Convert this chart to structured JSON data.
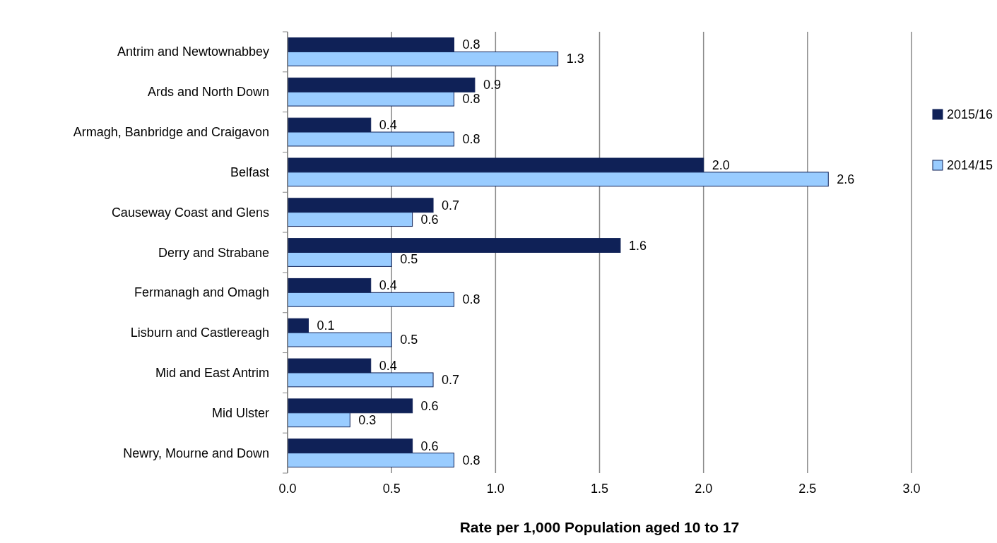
{
  "chart_data": {
    "type": "bar",
    "orientation": "horizontal",
    "xlabel": "Rate per 1,000 Population aged 10 to 17",
    "categories": [
      "Antrim and Newtownabbey",
      "Ards and North Down",
      "Armagh, Banbridge and Craigavon",
      "Belfast",
      "Causeway Coast and Glens",
      "Derry and Strabane",
      "Fermanagh and Omagh",
      "Lisburn and Castlereagh",
      "Mid and East Antrim",
      "Mid Ulster",
      "Newry, Mourne and Down"
    ],
    "series": [
      {
        "name": "2015/16",
        "color": "#0f2157",
        "values": [
          0.8,
          0.9,
          0.4,
          2.0,
          0.7,
          1.6,
          0.4,
          0.1,
          0.4,
          0.6,
          0.6
        ],
        "value_labels": [
          "0.8",
          "0.9",
          "0.4",
          "2.0",
          "0.7",
          "1.6",
          "0.4",
          "0.1",
          "0.4",
          "0.6",
          "0.6"
        ]
      },
      {
        "name": "2014/15",
        "color": "#99ccff",
        "values": [
          1.3,
          0.8,
          0.8,
          2.6,
          0.6,
          0.5,
          0.8,
          0.5,
          0.7,
          0.3,
          0.8
        ],
        "value_labels": [
          "1.3",
          "0.8",
          "0.8",
          "2.6",
          "0.6",
          "0.5",
          "0.8",
          "0.5",
          "0.7",
          "0.3",
          "0.8"
        ]
      }
    ],
    "xlim": [
      0,
      3
    ],
    "xticks": [
      {
        "value": 0,
        "label": "0.0"
      },
      {
        "value": 0.5,
        "label": "0.5"
      },
      {
        "value": 1,
        "label": "1.0"
      },
      {
        "value": 1.5,
        "label": "1.5"
      },
      {
        "value": 2,
        "label": "2.0"
      },
      {
        "value": 2.5,
        "label": "2.5"
      },
      {
        "value": 3,
        "label": "3.0"
      }
    ],
    "grid": "x",
    "legend": "right"
  }
}
